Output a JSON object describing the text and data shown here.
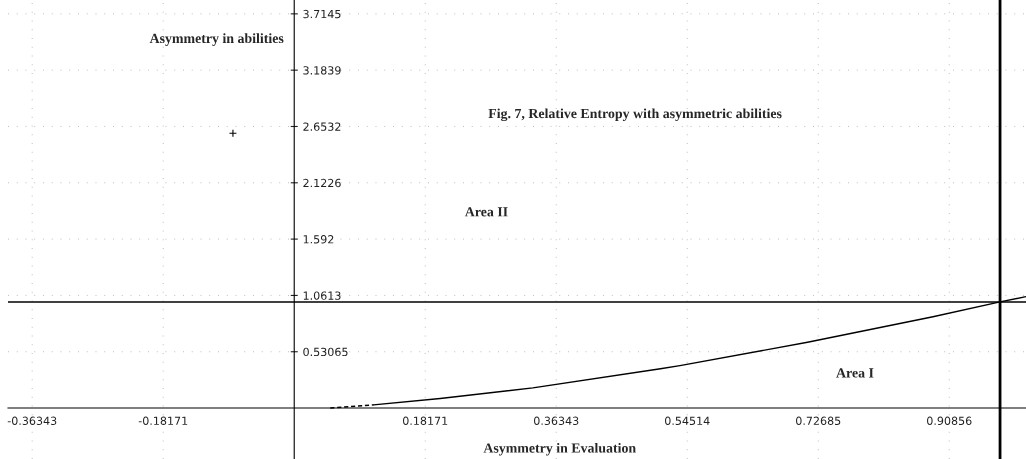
{
  "chart_data": {
    "type": "line",
    "title": "Fig. 7, Relative Entropy with asymmetric abilities",
    "xlabel": "Asymmetry in Evaluation",
    "ylabel": "Asymmetry in abilities",
    "annotations": [
      "Area II",
      "Area I"
    ],
    "series": [
      {
        "color": "#000000",
        "line_style": "dashed",
        "x": [
          0.05,
          0.11
        ],
        "values": [
          0,
          0.03
        ]
      },
      {
        "color": "#000000",
        "line_style": "solid",
        "x": [
          0.11,
          0.2025,
          0.331,
          0.508,
          0.535,
          0.712,
          0.886,
          0.979,
          1.015
        ],
        "values": [
          0.03,
          0.09,
          0.19,
          0.37,
          0.4,
          0.62,
          0.86,
          1.0,
          1.05
        ]
      },
      {
        "type": "scatter",
        "color": "#000000",
        "marker": "cross",
        "x": [
          -0.085
        ],
        "values": [
          2.59
        ]
      }
    ],
    "ref_lines": [
      {
        "axis": "y",
        "value": 1.0,
        "color": "#000000"
      },
      {
        "axis": "x",
        "value": 0.979,
        "color": "#000000"
      }
    ],
    "xlim": [
      -0.397,
      1.015
    ],
    "ylim": [
      -0.48,
      3.845
    ],
    "xticks": [
      -0.36343,
      -0.18171,
      0.18171,
      0.36343,
      0.54514,
      0.72685,
      0.90856
    ],
    "yticks": [
      0.53065,
      1.0613,
      1.592,
      2.1226,
      2.6532,
      3.1839,
      3.7145
    ],
    "grid": true
  }
}
